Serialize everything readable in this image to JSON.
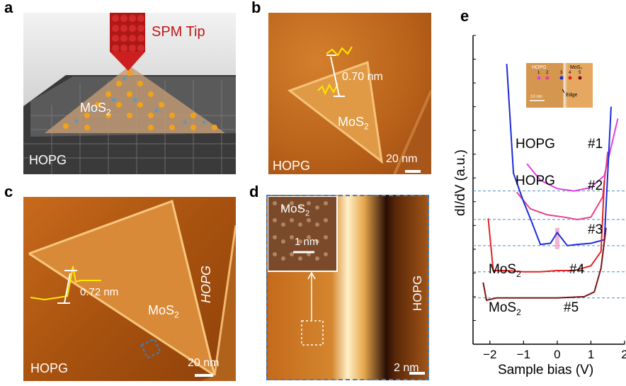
{
  "panels": {
    "a": {
      "letter": "a",
      "spm_tip": "SPM Tip",
      "mos2_main": "MoS",
      "mos2_sub": "2",
      "hopg": "HOPG"
    },
    "b": {
      "letter": "b",
      "height": "0.70 nm",
      "mos2_main": "MoS",
      "mos2_sub": "2",
      "scale": "20 nm",
      "hopg": "HOPG"
    },
    "c": {
      "letter": "c",
      "height": "0.72 nm",
      "mos2_main": "MoS",
      "mos2_sub": "2",
      "hopg_right": "HOPG",
      "hopg": "HOPG",
      "scale": "20 nm"
    },
    "d": {
      "letter": "d",
      "inset_mos2_main": "MoS",
      "inset_mos2_sub": "2",
      "inset_scale": "1 nm",
      "hopg": "HOPG",
      "scale": "2 nm"
    },
    "e": {
      "letter": "e",
      "inset": {
        "hopg": "HOPG",
        "mos2": "MoS₂",
        "points": [
          "1",
          "2",
          "3",
          "4",
          "5"
        ],
        "scale": "10 nm",
        "edge": "Edge"
      },
      "curve_labels": [
        "HOPG",
        "HOPG",
        "MoS",
        "MoS"
      ],
      "curve_label_subs": [
        "",
        "",
        "2",
        "2"
      ],
      "curve_numbers": [
        "#1",
        "#2",
        "#3",
        "#4",
        "#5"
      ]
    }
  },
  "chart_data": {
    "type": "line",
    "xlabel": "Sample bias (V)",
    "ylabel": "dI/dV (a.u.)",
    "xlim": [
      -2.5,
      2
    ],
    "x_ticks": [
      -2,
      -1,
      0,
      1,
      2
    ],
    "x_tick_labels": [
      "−2",
      "−1",
      "0",
      "1",
      "2"
    ],
    "colors": {
      "#1": "#e040e0",
      "#2": "#e8408c",
      "#3": "#1a2bdc",
      "#4": "#e02424",
      "#5": "#7a1414"
    },
    "series": [
      {
        "x": [
          -0.9,
          -0.5,
          0,
          0.5,
          1.0,
          1.4,
          1.8
        ],
        "y": [
          7.6,
          6.9,
          6.55,
          6.45,
          6.6,
          7.1,
          9.5
        ]
      },
      {
        "x": [
          -1.2,
          -0.8,
          -0.3,
          0.2,
          0.6,
          1.0,
          1.35,
          1.5
        ],
        "y": [
          6.4,
          5.7,
          5.45,
          5.35,
          5.25,
          5.35,
          6.2,
          8.1
        ]
      },
      {
        "x": [
          -1.5,
          -1.3,
          -1.0,
          -0.8,
          -0.5,
          -0.2,
          0,
          0.3,
          0.6,
          1.0,
          1.4,
          1.6
        ],
        "y": [
          11.8,
          7.2,
          6.0,
          5.3,
          4.2,
          4.25,
          4.7,
          4.15,
          4.2,
          4.25,
          4.4,
          10.0
        ]
      },
      {
        "x": [
          -2.05,
          -1.9,
          -1.5,
          -1.0,
          -0.5,
          0,
          0.5,
          1.0,
          1.3,
          1.4
        ],
        "y": [
          5.3,
          3.1,
          3.1,
          3.05,
          3.05,
          3.1,
          3.1,
          3.3,
          3.9,
          6.9
        ]
      },
      {
        "x": [
          -2.2,
          -2.1,
          -1.8,
          -1.0,
          0,
          0.8,
          1.1,
          1.3,
          1.45
        ],
        "y": [
          2.6,
          1.85,
          1.95,
          1.95,
          1.95,
          2.0,
          2.2,
          3.2,
          4.9
        ]
      }
    ],
    "baselines": [
      6.45,
      5.25,
      4.15,
      3.05,
      1.95
    ]
  }
}
